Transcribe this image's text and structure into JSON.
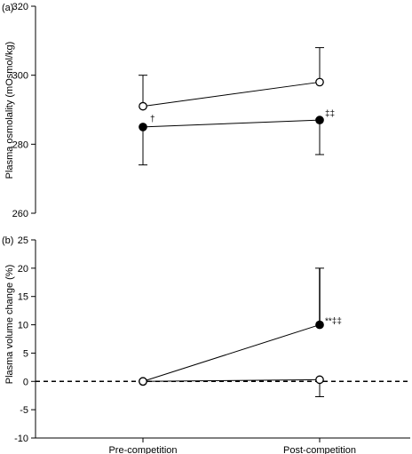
{
  "chart_data": [
    {
      "panel": "(a)",
      "type": "line",
      "ylabel": "Plasma osmolality (mOsmol/kg)",
      "ylim": [
        260,
        320
      ],
      "yticks": [
        260,
        280,
        300,
        320
      ],
      "categories": [
        "Pre-competition",
        "Post-competition"
      ],
      "series": [
        {
          "marker": "open-circle",
          "values": [
            291,
            298
          ],
          "error_up": [
            9,
            10
          ],
          "error_down": [
            0,
            0
          ],
          "annotations": [
            "",
            ""
          ]
        },
        {
          "marker": "filled-circle",
          "values": [
            285,
            287
          ],
          "error_up": [
            0,
            0
          ],
          "error_down": [
            11,
            10
          ],
          "annotations": [
            "†",
            "‡‡"
          ]
        }
      ]
    },
    {
      "panel": "(b)",
      "type": "line",
      "ylabel": "Plasma volume change (%)",
      "xlabel": "",
      "ylim": [
        -10,
        25
      ],
      "yticks": [
        -10,
        -5,
        0,
        5,
        10,
        15,
        20,
        25
      ],
      "reference_line": 0,
      "categories": [
        "Pre-competition",
        "Post-competition"
      ],
      "series": [
        {
          "marker": "filled-circle",
          "values": [
            0,
            10
          ],
          "error_up": [
            0,
            10
          ],
          "error_down": [
            0,
            0
          ],
          "annotations": [
            "",
            "**‡‡"
          ]
        },
        {
          "marker": "open-circle",
          "values": [
            0,
            0.3
          ],
          "error_up": [
            0,
            0
          ],
          "error_down": [
            0,
            3
          ],
          "annotations": [
            "",
            ""
          ]
        }
      ]
    }
  ]
}
